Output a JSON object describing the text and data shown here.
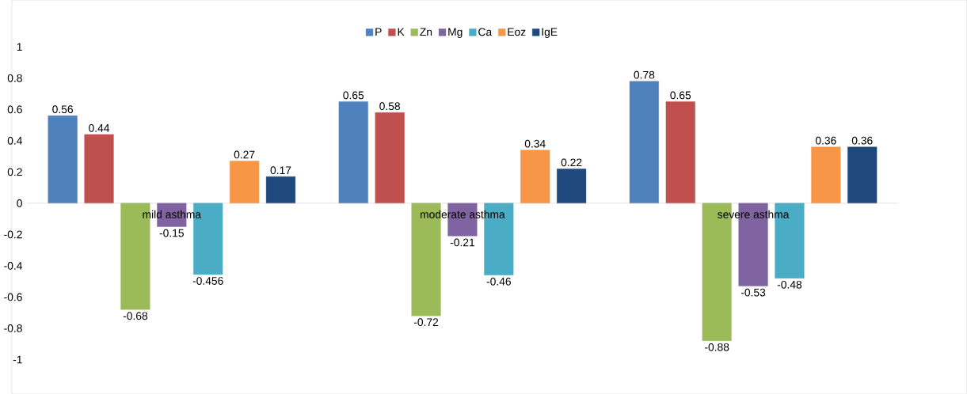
{
  "chart_data": {
    "type": "bar",
    "categories": [
      "mild asthma",
      "moderate asthma",
      "severe asthma"
    ],
    "series": [
      {
        "name": "P",
        "color": "#4f81bd",
        "values": [
          0.56,
          0.65,
          0.78
        ]
      },
      {
        "name": "K",
        "color": "#c0504d",
        "values": [
          0.44,
          0.58,
          0.65
        ]
      },
      {
        "name": "Zn",
        "color": "#9bbb59",
        "values": [
          -0.68,
          -0.72,
          -0.88
        ]
      },
      {
        "name": "Mg",
        "color": "#8064a2",
        "values": [
          -0.15,
          -0.21,
          -0.53
        ]
      },
      {
        "name": "Ca",
        "color": "#4bacc6",
        "values": [
          -0.456,
          -0.46,
          -0.48
        ]
      },
      {
        "name": "Eoz",
        "color": "#f79646",
        "values": [
          0.27,
          0.34,
          0.36
        ]
      },
      {
        "name": "IgE",
        "color": "#1f497d",
        "values": [
          0.17,
          0.22,
          0.36
        ]
      }
    ],
    "ylim": [
      -1,
      1
    ],
    "yticks": [
      -1,
      -0.8,
      -0.6,
      -0.4,
      -0.2,
      0,
      0.2,
      0.4,
      0.6,
      0.8,
      1
    ],
    "data_labels": true,
    "legend": "top",
    "grid": false
  }
}
